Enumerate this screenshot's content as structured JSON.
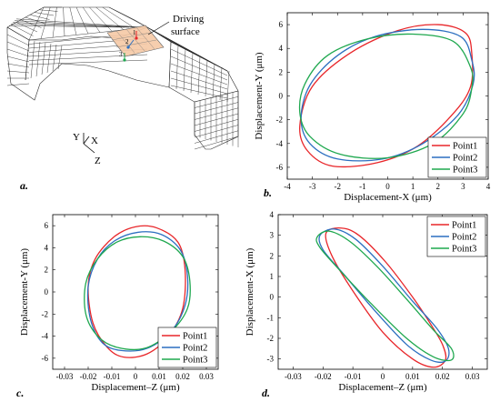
{
  "panel_a": {
    "label": "a.",
    "callout": [
      "Driving",
      "surface"
    ],
    "axes": {
      "y": "Y",
      "x": "X",
      "z": "Z"
    },
    "point_markers": [
      "1",
      "2",
      "3"
    ],
    "colors": {
      "mesh": "#2a2a2a",
      "surface": "#f6c9a6",
      "m1": "#e8262a",
      "m2": "#2c6fc0",
      "m3": "#1fa84f"
    }
  },
  "chart_data": [
    {
      "type": "line",
      "panel_label": "b.",
      "xlabel": "Displacement-X (μm)",
      "ylabel": "Displacement-Y (μm)",
      "xlim": [
        -4,
        4
      ],
      "ylim": [
        -7,
        7
      ],
      "xticks": [
        -4,
        -3,
        -2,
        -1,
        0,
        1,
        2,
        3,
        4
      ],
      "yticks": [
        -6,
        -4,
        -2,
        0,
        2,
        4,
        6
      ],
      "legend_position": "bottom-right",
      "series": [
        {
          "name": "Point1",
          "color": "#e8262a",
          "points": [
            [
              3.35,
              3.5
            ],
            [
              3.1,
              5.3
            ],
            [
              2.0,
              6.0
            ],
            [
              0.4,
              5.5
            ],
            [
              -1.5,
              3.6
            ],
            [
              -3.0,
              0.8
            ],
            [
              -3.5,
              -2.5
            ],
            [
              -3.2,
              -4.6
            ],
            [
              -2.2,
              -5.9
            ],
            [
              -0.4,
              -5.6
            ],
            [
              1.2,
              -4.2
            ],
            [
              2.6,
              -1.5
            ],
            [
              3.3,
              0.8
            ],
            [
              3.35,
              3.5
            ]
          ]
        },
        {
          "name": "Point2",
          "color": "#2c6fc0",
          "points": [
            [
              3.35,
              3.0
            ],
            [
              2.9,
              5.0
            ],
            [
              1.4,
              5.6
            ],
            [
              -0.5,
              5.0
            ],
            [
              -2.0,
              3.4
            ],
            [
              -3.1,
              0.9
            ],
            [
              -3.45,
              -1.9
            ],
            [
              -3.1,
              -4.0
            ],
            [
              -2.0,
              -5.3
            ],
            [
              -0.2,
              -5.3
            ],
            [
              1.4,
              -4.0
            ],
            [
              2.8,
              -1.6
            ],
            [
              3.4,
              1.0
            ],
            [
              3.35,
              3.0
            ]
          ]
        },
        {
          "name": "Point3",
          "color": "#1fa84f",
          "points": [
            [
              3.3,
              2.4
            ],
            [
              2.6,
              4.6
            ],
            [
              1.0,
              5.2
            ],
            [
              -0.8,
              4.8
            ],
            [
              -2.4,
              3.4
            ],
            [
              -3.3,
              1.0
            ],
            [
              -3.5,
              -1.4
            ],
            [
              -3.1,
              -3.4
            ],
            [
              -1.9,
              -4.9
            ],
            [
              0.0,
              -5.2
            ],
            [
              1.8,
              -4.0
            ],
            [
              3.0,
              -1.5
            ],
            [
              3.35,
              0.7
            ],
            [
              3.3,
              2.4
            ]
          ]
        }
      ]
    },
    {
      "type": "line",
      "panel_label": "c.",
      "xlabel": "Displacement–Z (μm)",
      "ylabel": "Displacement-Y (μm)",
      "xlim": [
        -0.035,
        0.035
      ],
      "ylim": [
        -7,
        7
      ],
      "xticks": [
        -0.03,
        -0.02,
        -0.01,
        0,
        0.01,
        0.02,
        0.03
      ],
      "yticks": [
        -6,
        -4,
        -2,
        0,
        2,
        4,
        6
      ],
      "legend_position": "bottom-right",
      "series": [
        {
          "name": "Point1",
          "color": "#e8262a",
          "points": [
            [
              0.021,
              2.0
            ],
            [
              0.018,
              4.5
            ],
            [
              0.009,
              5.8
            ],
            [
              0.0,
              5.9
            ],
            [
              -0.009,
              5.0
            ],
            [
              -0.017,
              3.0
            ],
            [
              -0.02,
              0.5
            ],
            [
              -0.018,
              -2.8
            ],
            [
              -0.012,
              -5.0
            ],
            [
              -0.005,
              -5.9
            ],
            [
              0.005,
              -5.6
            ],
            [
              0.014,
              -4.0
            ],
            [
              0.02,
              -1.5
            ],
            [
              0.021,
              2.0
            ]
          ]
        },
        {
          "name": "Point2",
          "color": "#2c6fc0",
          "points": [
            [
              0.022,
              1.5
            ],
            [
              0.019,
              3.8
            ],
            [
              0.011,
              5.2
            ],
            [
              0.001,
              5.4
            ],
            [
              -0.009,
              4.6
            ],
            [
              -0.016,
              3.0
            ],
            [
              -0.02,
              0.5
            ],
            [
              -0.019,
              -2.5
            ],
            [
              -0.014,
              -4.6
            ],
            [
              -0.006,
              -5.3
            ],
            [
              0.005,
              -5.1
            ],
            [
              0.015,
              -3.6
            ],
            [
              0.021,
              -1.2
            ],
            [
              0.022,
              1.5
            ]
          ]
        },
        {
          "name": "Point3",
          "color": "#1fa84f",
          "points": [
            [
              0.023,
              1.0
            ],
            [
              0.02,
              3.2
            ],
            [
              0.012,
              4.6
            ],
            [
              0.002,
              5.0
            ],
            [
              -0.008,
              4.5
            ],
            [
              -0.016,
              3.0
            ],
            [
              -0.021,
              0.8
            ],
            [
              -0.021,
              -2.0
            ],
            [
              -0.016,
              -4.0
            ],
            [
              -0.008,
              -5.0
            ],
            [
              0.004,
              -5.1
            ],
            [
              0.015,
              -3.6
            ],
            [
              0.022,
              -1.5
            ],
            [
              0.023,
              1.0
            ]
          ]
        }
      ]
    },
    {
      "type": "line",
      "panel_label": "d.",
      "xlabel": "Displacement–Z (μm)",
      "ylabel": "Displacement-X (μm)",
      "xlim": [
        -0.035,
        0.035
      ],
      "ylim": [
        -3.5,
        4
      ],
      "xticks": [
        -0.03,
        -0.02,
        -0.01,
        0,
        0.01,
        0.02,
        0.03
      ],
      "yticks": [
        -3,
        -2,
        -1,
        0,
        1,
        2,
        3,
        4
      ],
      "legend_position": "top-right",
      "series": [
        {
          "name": "Point1",
          "color": "#e8262a",
          "points": [
            [
              -0.019,
              3.1
            ],
            [
              -0.014,
              3.35
            ],
            [
              -0.008,
              3.0
            ],
            [
              0.001,
              1.7
            ],
            [
              0.01,
              0.0
            ],
            [
              0.016,
              -1.3
            ],
            [
              0.02,
              -2.3
            ],
            [
              0.021,
              -3.05
            ],
            [
              0.017,
              -3.4
            ],
            [
              0.01,
              -3.0
            ],
            [
              0.0,
              -1.7
            ],
            [
              -0.01,
              0.3
            ],
            [
              -0.017,
              2.0
            ],
            [
              -0.019,
              3.1
            ]
          ]
        },
        {
          "name": "Point2",
          "color": "#2c6fc0",
          "points": [
            [
              -0.021,
              3.0
            ],
            [
              -0.016,
              3.3
            ],
            [
              -0.009,
              2.8
            ],
            [
              0.0,
              1.5
            ],
            [
              0.01,
              -0.2
            ],
            [
              0.018,
              -1.5
            ],
            [
              0.022,
              -2.5
            ],
            [
              0.021,
              -3.1
            ],
            [
              0.016,
              -3.05
            ],
            [
              0.008,
              -2.3
            ],
            [
              -0.003,
              -0.6
            ],
            [
              -0.013,
              1.1
            ],
            [
              -0.02,
              2.3
            ],
            [
              -0.021,
              3.0
            ]
          ]
        },
        {
          "name": "Point3",
          "color": "#1fa84f",
          "points": [
            [
              -0.022,
              2.9
            ],
            [
              -0.018,
              3.2
            ],
            [
              -0.011,
              2.7
            ],
            [
              -0.002,
              1.5
            ],
            [
              0.008,
              -0.1
            ],
            [
              0.017,
              -1.6
            ],
            [
              0.023,
              -2.5
            ],
            [
              0.023,
              -3.05
            ],
            [
              0.017,
              -2.9
            ],
            [
              0.008,
              -2.0
            ],
            [
              -0.004,
              -0.3
            ],
            [
              -0.015,
              1.4
            ],
            [
              -0.021,
              2.4
            ],
            [
              -0.022,
              2.9
            ]
          ]
        }
      ]
    }
  ]
}
